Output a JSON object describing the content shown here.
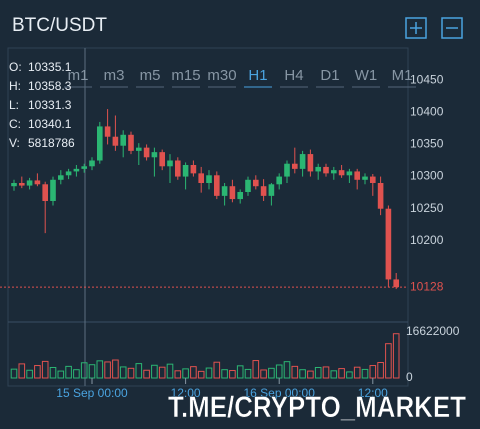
{
  "chart_data": {
    "type": "candlestick",
    "title": "BTC/USDT",
    "timeframes": [
      "m1",
      "m3",
      "m5",
      "m15",
      "m30",
      "H1",
      "H4",
      "D1",
      "W1",
      "M1"
    ],
    "active_timeframe": 5,
    "info": [
      {
        "label": "O:",
        "value": "10335.1"
      },
      {
        "label": "H:",
        "value": "10358.3"
      },
      {
        "label": "L:",
        "value": "10331.3"
      },
      {
        "label": "C:",
        "value": "10340.1"
      },
      {
        "label": "V:",
        "value": "5818786"
      }
    ],
    "categories": [
      null,
      null,
      null,
      null,
      null,
      null,
      null,
      null,
      null,
      null,
      "15 Sep 00:00",
      null,
      null,
      null,
      null,
      null,
      null,
      null,
      null,
      null,
      null,
      null,
      "12:00",
      null,
      null,
      null,
      null,
      null,
      null,
      null,
      null,
      null,
      null,
      null,
      "16 Sep 00:00",
      null,
      null,
      null,
      null,
      null,
      null,
      null,
      null,
      null,
      null,
      null,
      "12:00",
      null,
      null,
      null
    ],
    "open": [
      10285,
      10290,
      10286,
      10294,
      10288,
      10262,
      10295,
      10302,
      10308,
      10312,
      10316,
      10325,
      10378,
      10362,
      10348,
      10365,
      10340,
      10345,
      10330,
      10338,
      10316,
      10325,
      10300,
      10318,
      10305,
      10290,
      10302,
      10270,
      10285,
      10265,
      10276,
      10295,
      10285,
      10270,
      10288,
      10300,
      10320,
      10312,
      10335,
      10308,
      10315,
      10305,
      10310,
      10302,
      10308,
      10295,
      10300,
      10290,
      10250,
      10140
    ],
    "high": [
      10295,
      10300,
      10298,
      10305,
      10292,
      10300,
      10310,
      10312,
      10318,
      10320,
      10330,
      10385,
      10405,
      10395,
      10372,
      10370,
      10352,
      10350,
      10345,
      10342,
      10335,
      10330,
      10322,
      10325,
      10315,
      10310,
      10308,
      10290,
      10295,
      10280,
      10300,
      10302,
      10296,
      10290,
      10305,
      10325,
      10345,
      10340,
      10342,
      10320,
      10320,
      10315,
      10318,
      10312,
      10312,
      10305,
      10304,
      10300,
      10255,
      10150
    ],
    "low": [
      10278,
      10282,
      10280,
      10285,
      10212,
      10255,
      10288,
      10296,
      10300,
      10306,
      10310,
      10320,
      10350,
      10340,
      10330,
      10335,
      10318,
      10325,
      10300,
      10310,
      10290,
      10295,
      10280,
      10300,
      10275,
      10280,
      10265,
      10255,
      10260,
      10258,
      10270,
      10280,
      10262,
      10255,
      10280,
      10290,
      10305,
      10300,
      10300,
      10295,
      10300,
      10295,
      10298,
      10290,
      10280,
      10288,
      10270,
      10240,
      10128,
      10125
    ],
    "close": [
      10290,
      10286,
      10294,
      10288,
      10262,
      10295,
      10302,
      10308,
      10312,
      10316,
      10325,
      10378,
      10362,
      10348,
      10365,
      10340,
      10345,
      10330,
      10338,
      10316,
      10325,
      10300,
      10318,
      10305,
      10290,
      10302,
      10270,
      10285,
      10265,
      10276,
      10295,
      10285,
      10270,
      10288,
      10300,
      10320,
      10312,
      10335,
      10308,
      10315,
      10305,
      10310,
      10302,
      10308,
      10295,
      10300,
      10290,
      10250,
      10140,
      10128
    ],
    "volume": [
      3200000,
      5100000,
      2800000,
      4500000,
      6000000,
      3800000,
      2500000,
      4200000,
      3000000,
      5500000,
      4800000,
      6200000,
      5800000,
      6500000,
      4000000,
      3500000,
      5200000,
      2800000,
      4600000,
      3900000,
      5000000,
      2600000,
      3300000,
      4100000,
      2400000,
      3600000,
      5700000,
      3000000,
      2700000,
      4400000,
      3100000,
      6300000,
      2900000,
      3500000,
      4700000,
      5900000,
      4200000,
      3000000,
      2500000,
      3800000,
      4000000,
      2600000,
      3400000,
      2200000,
      3900000,
      3100000,
      4500000,
      5600000,
      12400000,
      16000000
    ],
    "up_color": "#2bb673",
    "down_color": "#e0524f",
    "ylim": [
      10080,
      10500
    ],
    "yticks": [
      10200,
      10250,
      10300,
      10350,
      10400,
      10450
    ],
    "y2lim": [
      0,
      16622000
    ],
    "y2ticks": [
      0,
      16622000
    ],
    "last_price": 10128,
    "grid": false,
    "watermark": "T.ME/CRYPTO_MARKET"
  }
}
